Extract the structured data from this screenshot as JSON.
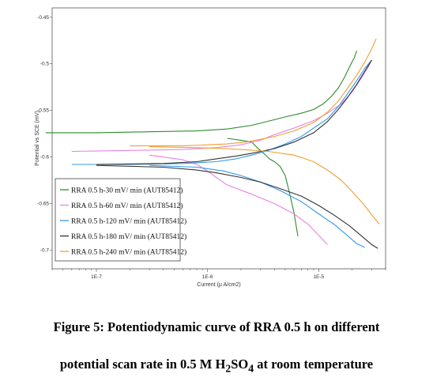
{
  "chart_data": {
    "type": "line",
    "xlabel": "Current (µ A/cm2)",
    "ylabel": "Potential vs SCE (mV)",
    "xscale": "log",
    "xlim": [
      4e-08,
      4e-05
    ],
    "ylim": [
      -0.72,
      -0.44
    ],
    "x_ticks": [
      1e-07,
      1e-06,
      1e-05
    ],
    "x_tick_labels": [
      "1E-7",
      "1E-6",
      "1E-5"
    ],
    "y_ticks": [
      -0.45,
      -0.5,
      -0.55,
      -0.6,
      -0.65,
      -0.7
    ],
    "y_tick_labels": [
      "-0.45",
      "-0.5",
      "-0.55",
      "-0.6",
      "-0.65",
      "-0.7"
    ],
    "grid": false,
    "legend_position": "bottom-left",
    "series": [
      {
        "name": "RRA 0.5 h-30 mV/ min (AUT85412)",
        "color": "#2e8b2e",
        "anodic": [
          [
            3.5e-08,
            -0.574
          ],
          [
            1e-07,
            -0.574
          ],
          [
            3e-07,
            -0.573
          ],
          [
            8e-07,
            -0.572
          ],
          [
            1.5e-06,
            -0.57
          ],
          [
            2.5e-06,
            -0.566
          ],
          [
            4e-06,
            -0.56
          ],
          [
            5e-06,
            -0.557
          ],
          [
            7e-06,
            -0.553
          ],
          [
            9e-06,
            -0.549
          ],
          [
            1.1e-05,
            -0.543
          ],
          [
            1.3e-05,
            -0.535
          ],
          [
            1.5e-05,
            -0.526
          ],
          [
            1.7e-05,
            -0.515
          ],
          [
            1.9e-05,
            -0.503
          ],
          [
            2.1e-05,
            -0.493
          ],
          [
            2.2e-05,
            -0.486
          ]
        ],
        "cathodic": [
          [
            1.5e-06,
            -0.58
          ],
          [
            2e-06,
            -0.582
          ],
          [
            2.5e-06,
            -0.584
          ],
          [
            2.8e-06,
            -0.59
          ],
          [
            3.2e-06,
            -0.596
          ],
          [
            3.6e-06,
            -0.602
          ],
          [
            4e-06,
            -0.605
          ],
          [
            4.5e-06,
            -0.61
          ],
          [
            5e-06,
            -0.62
          ],
          [
            5.5e-06,
            -0.64
          ],
          [
            6e-06,
            -0.66
          ],
          [
            6.5e-06,
            -0.685
          ]
        ]
      },
      {
        "name": "RRA 0.5 h-60 mV/ min (AUT85412)",
        "color": "#e882e8",
        "anodic": [
          [
            6e-08,
            -0.594
          ],
          [
            2e-07,
            -0.593
          ],
          [
            6e-07,
            -0.592
          ],
          [
            1.2e-06,
            -0.59
          ],
          [
            2e-06,
            -0.587
          ],
          [
            3e-06,
            -0.582
          ],
          [
            4e-06,
            -0.576
          ],
          [
            6e-06,
            -0.569
          ],
          [
            9e-06,
            -0.561
          ],
          [
            1.2e-05,
            -0.553
          ],
          [
            1.6e-05,
            -0.543
          ],
          [
            2e-05,
            -0.53
          ],
          [
            2.4e-05,
            -0.516
          ],
          [
            2.8e-05,
            -0.503
          ],
          [
            3e-05,
            -0.496
          ]
        ],
        "cathodic": [
          [
            3e-07,
            -0.598
          ],
          [
            6e-07,
            -0.603
          ],
          [
            8e-07,
            -0.608
          ],
          [
            1e-06,
            -0.615
          ],
          [
            1.2e-06,
            -0.622
          ],
          [
            1.5e-06,
            -0.63
          ],
          [
            2.5e-06,
            -0.64
          ],
          [
            4e-06,
            -0.65
          ],
          [
            6e-06,
            -0.661
          ],
          [
            8e-06,
            -0.672
          ],
          [
            1e-05,
            -0.684
          ],
          [
            1.2e-05,
            -0.694
          ]
        ]
      },
      {
        "name": "RRA 0.5 h-120 mV/ min (AUT85412)",
        "color": "#3399ee",
        "anodic": [
          [
            6e-08,
            -0.608
          ],
          [
            2e-07,
            -0.608
          ],
          [
            6e-07,
            -0.607
          ],
          [
            1.2e-06,
            -0.605
          ],
          [
            1.8e-06,
            -0.602
          ],
          [
            2.5e-06,
            -0.598
          ],
          [
            3.5e-06,
            -0.593
          ],
          [
            5e-06,
            -0.586
          ],
          [
            7e-06,
            -0.578
          ],
          [
            9e-06,
            -0.569
          ],
          [
            1.2e-05,
            -0.559
          ],
          [
            1.5e-05,
            -0.546
          ],
          [
            1.8e-05,
            -0.533
          ],
          [
            2.2e-05,
            -0.518
          ],
          [
            2.6e-05,
            -0.505
          ],
          [
            3e-05,
            -0.496
          ]
        ],
        "cathodic": [
          [
            3e-07,
            -0.609
          ],
          [
            8e-07,
            -0.611
          ],
          [
            1.4e-06,
            -0.615
          ],
          [
            2e-06,
            -0.62
          ],
          [
            3e-06,
            -0.627
          ],
          [
            4.5e-06,
            -0.636
          ],
          [
            7e-06,
            -0.648
          ],
          [
            1e-05,
            -0.661
          ],
          [
            1.4e-05,
            -0.673
          ],
          [
            1.8e-05,
            -0.684
          ],
          [
            2.2e-05,
            -0.693
          ],
          [
            2.6e-05,
            -0.697
          ]
        ]
      },
      {
        "name": "RRA 0.5 h-180 mV/ min (AUT85412)",
        "color": "#333333",
        "anodic": [
          [
            1e-07,
            -0.608
          ],
          [
            4e-07,
            -0.607
          ],
          [
            8e-07,
            -0.605
          ],
          [
            1.2e-06,
            -0.602
          ],
          [
            1.8e-06,
            -0.599
          ],
          [
            2.5e-06,
            -0.596
          ],
          [
            4e-06,
            -0.591
          ],
          [
            6e-06,
            -0.584
          ],
          [
            9e-06,
            -0.574
          ],
          [
            1.2e-05,
            -0.562
          ],
          [
            1.5e-05,
            -0.549
          ],
          [
            1.8e-05,
            -0.537
          ],
          [
            2.2e-05,
            -0.522
          ],
          [
            2.6e-05,
            -0.508
          ],
          [
            3e-05,
            -0.496
          ]
        ],
        "cathodic": [
          [
            1e-07,
            -0.609
          ],
          [
            4e-07,
            -0.611
          ],
          [
            8e-07,
            -0.614
          ],
          [
            1.2e-06,
            -0.617
          ],
          [
            2e-06,
            -0.622
          ],
          [
            3e-06,
            -0.627
          ],
          [
            4.5e-06,
            -0.634
          ],
          [
            7e-06,
            -0.642
          ],
          [
            1e-05,
            -0.652
          ],
          [
            1.4e-05,
            -0.663
          ],
          [
            1.9e-05,
            -0.674
          ],
          [
            2.5e-05,
            -0.686
          ],
          [
            3e-05,
            -0.694
          ],
          [
            3.4e-05,
            -0.698
          ]
        ]
      },
      {
        "name": "RRA 0.5 h-240 mV/ min (AUT85412)",
        "color": "#f0a030",
        "anodic": [
          [
            2e-07,
            -0.588
          ],
          [
            6e-07,
            -0.588
          ],
          [
            1e-06,
            -0.587
          ],
          [
            1.5e-06,
            -0.586
          ],
          [
            2.2e-06,
            -0.584
          ],
          [
            3e-06,
            -0.581
          ],
          [
            4e-06,
            -0.578
          ],
          [
            6e-06,
            -0.572
          ],
          [
            9e-06,
            -0.563
          ],
          [
            1.2e-05,
            -0.552
          ],
          [
            1.5e-05,
            -0.54
          ],
          [
            1.8e-05,
            -0.527
          ],
          [
            2.2e-05,
            -0.512
          ],
          [
            2.6e-05,
            -0.498
          ],
          [
            3e-05,
            -0.484
          ],
          [
            3.3e-05,
            -0.473
          ]
        ],
        "cathodic": [
          [
            3e-07,
            -0.589
          ],
          [
            8e-07,
            -0.59
          ],
          [
            1.4e-06,
            -0.591
          ],
          [
            2e-06,
            -0.592
          ],
          [
            3.5e-06,
            -0.594
          ],
          [
            6e-06,
            -0.598
          ],
          [
            9e-06,
            -0.605
          ],
          [
            1.2e-05,
            -0.614
          ],
          [
            1.6e-05,
            -0.625
          ],
          [
            2e-05,
            -0.637
          ],
          [
            2.5e-05,
            -0.65
          ],
          [
            3e-05,
            -0.662
          ],
          [
            3.5e-05,
            -0.672
          ]
        ]
      }
    ]
  },
  "caption": {
    "line1": "Figure 5: Potentiodynamic curve of RRA 0.5 h on different",
    "line2_prefix": "potential scan rate in 0.5 M H",
    "line2_sub1": "2",
    "line2_mid": "SO",
    "line2_sub2": "4",
    "line2_suffix": " at room temperature"
  }
}
